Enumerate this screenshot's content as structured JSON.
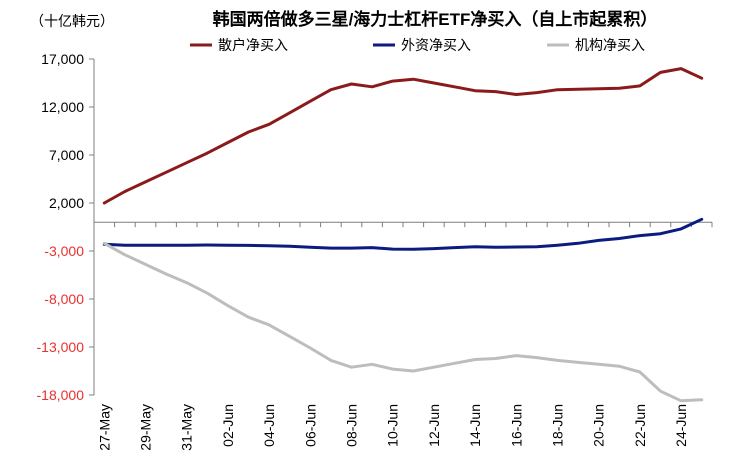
{
  "chart_data": {
    "type": "line",
    "title": "韩国两倍做多三星/海力士杠杆ETF净买入（自上市起累积）",
    "unit_label": "（十亿韩元）",
    "ylim": [
      -18000,
      17000
    ],
    "yticks": [
      17000,
      12000,
      7000,
      2000,
      -3000,
      -8000,
      -13000,
      -18000
    ],
    "ytick_labels": [
      "17,000",
      "12,000",
      "7,000",
      "2,000",
      "-3,000",
      "-8,000",
      "-13,000",
      "-18,000"
    ],
    "negative_tick_color": "#e8312f",
    "positive_tick_color": "#000000",
    "grid": false,
    "legend_position": "top",
    "x": [
      "27-May",
      "28-May",
      "29-May",
      "30-May",
      "31-May",
      "01-Jun",
      "02-Jun",
      "03-Jun",
      "04-Jun",
      "05-Jun",
      "06-Jun",
      "07-Jun",
      "08-Jun",
      "09-Jun",
      "10-Jun",
      "11-Jun",
      "12-Jun",
      "13-Jun",
      "14-Jun",
      "15-Jun",
      "16-Jun",
      "17-Jun",
      "18-Jun",
      "19-Jun",
      "20-Jun",
      "21-Jun",
      "22-Jun",
      "23-Jun",
      "24-Jun",
      "25-Jun"
    ],
    "xtick_labels": [
      "27-May",
      "29-May",
      "31-May",
      "02-Jun",
      "04-Jun",
      "06-Jun",
      "08-Jun",
      "10-Jun",
      "12-Jun",
      "14-Jun",
      "16-Jun",
      "18-Jun",
      "20-Jun",
      "22-Jun",
      "24-Jun"
    ],
    "series": [
      {
        "name": "散户净买入",
        "color": "#8b1a1a",
        "values": [
          2000,
          3200,
          4200,
          5200,
          6200,
          7200,
          8300,
          9400,
          10200,
          11400,
          12600,
          13800,
          14400,
          14100,
          14700,
          14900,
          14500,
          14100,
          13700,
          13600,
          13300,
          13500,
          13800,
          13850,
          13900,
          13950,
          14200,
          15600,
          16000,
          15000
        ]
      },
      {
        "name": "外资净买入",
        "color": "#0b1b80",
        "values": [
          -2300,
          -2400,
          -2400,
          -2400,
          -2400,
          -2380,
          -2400,
          -2420,
          -2450,
          -2500,
          -2600,
          -2700,
          -2700,
          -2650,
          -2800,
          -2820,
          -2750,
          -2650,
          -2550,
          -2600,
          -2580,
          -2550,
          -2400,
          -2200,
          -1900,
          -1700,
          -1400,
          -1200,
          -700,
          300
        ]
      },
      {
        "name": "机构净买入",
        "color": "#bdbdbd",
        "values": [
          -2200,
          -3400,
          -4400,
          -5400,
          -6300,
          -7400,
          -8700,
          -9900,
          -10700,
          -11900,
          -13100,
          -14400,
          -15100,
          -14800,
          -15300,
          -15500,
          -15100,
          -14700,
          -14300,
          -14200,
          -13900,
          -14100,
          -14400,
          -14600,
          -14800,
          -15000,
          -15600,
          -17600,
          -18600,
          -18500
        ]
      }
    ]
  }
}
